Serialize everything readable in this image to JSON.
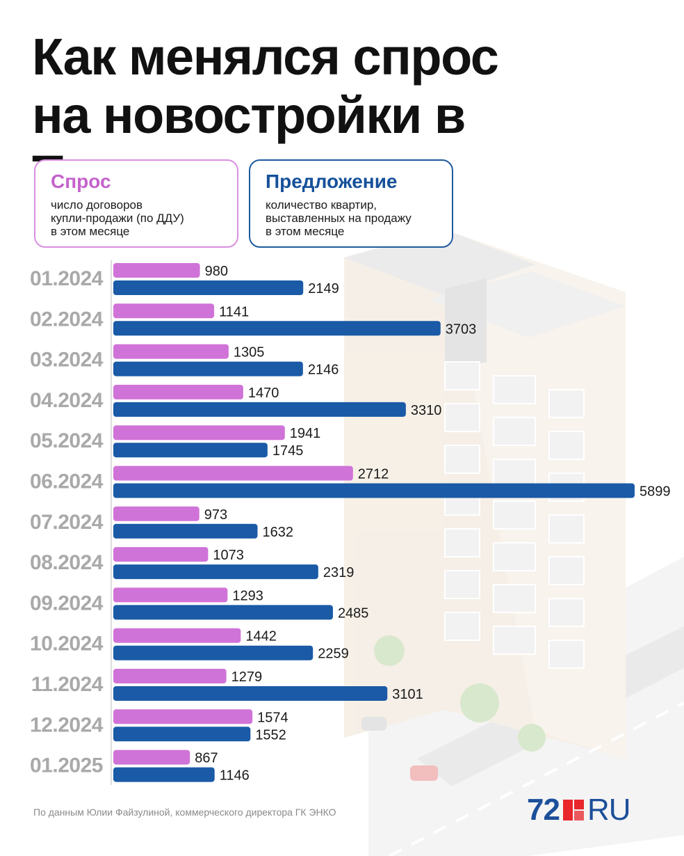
{
  "title": {
    "line1": "Как менялся спрос",
    "line2": "на новостройки в Тюмени"
  },
  "legend": {
    "demand": {
      "name": "Спрос",
      "desc1": "число договоров",
      "desc2": "купли-продажи (по ДДУ)",
      "desc3": "в этом месяце"
    },
    "supply": {
      "name": "Предложение",
      "desc1": "количество квартир,",
      "desc2": "выставленных на продажу",
      "desc3": "в этом месяце"
    }
  },
  "colors": {
    "demand": "#d073d8",
    "supply": "#1a5aa6",
    "month_label": "#a9a9a9"
  },
  "chart_data": {
    "type": "bar",
    "orientation": "horizontal",
    "categories": [
      "01.2024",
      "02.2024",
      "03.2024",
      "04.2024",
      "05.2024",
      "06.2024",
      "07.2024",
      "08.2024",
      "09.2024",
      "10.2024",
      "11.2024",
      "12.2024",
      "01.2025"
    ],
    "series": [
      {
        "name": "Спрос",
        "values": [
          980,
          1141,
          1305,
          1470,
          1941,
          2712,
          973,
          1073,
          1293,
          1442,
          1279,
          1574,
          867
        ]
      },
      {
        "name": "Предложение",
        "values": [
          2149,
          3703,
          2146,
          3310,
          1745,
          5899,
          1632,
          2319,
          2485,
          2259,
          3101,
          1552,
          1146
        ]
      }
    ],
    "xlim": [
      0,
      5899
    ],
    "grid": false,
    "legend": "top"
  },
  "footer": {
    "source": "По данным Юлии Файзулиной, коммерческого директора ГК ЭНКО",
    "logo_number": "72",
    "logo_text": "RU"
  }
}
